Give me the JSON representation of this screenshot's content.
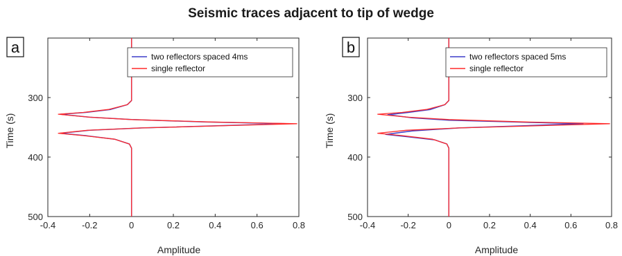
{
  "figure": {
    "title": "Seismic traces adjacent to tip of wedge"
  },
  "colors": {
    "blue": "#3b3bc8",
    "red": "#ff2a2a",
    "axis": "#262626"
  },
  "chart_data": [
    {
      "type": "line",
      "panel_label": "a",
      "xlabel": "Amplitude",
      "ylabel": "Time (s)",
      "xlim": [
        -0.4,
        0.8
      ],
      "ylim": [
        500,
        200
      ],
      "y_reversed": true,
      "xticks": [
        "-0.4",
        "-0.2",
        "0",
        "0.2",
        "0.4",
        "0.6",
        "0.8"
      ],
      "yticks": [
        "300",
        "400",
        "500"
      ],
      "legend_position": "top-right",
      "grid": false,
      "series": [
        {
          "name": "two reflectors spaced 4ms",
          "color": "#3b3bc8",
          "points": [
            [
              0,
              200
            ],
            [
              0,
              290
            ],
            [
              0,
              305
            ],
            [
              -0.02,
              312
            ],
            [
              -0.1,
              320
            ],
            [
              -0.22,
              325
            ],
            [
              -0.34,
              328
            ],
            [
              -0.2,
              333
            ],
            [
              0,
              337
            ],
            [
              0.35,
              341
            ],
            [
              0.74,
              344
            ],
            [
              0.45,
              347
            ],
            [
              0.05,
              351
            ],
            [
              -0.2,
              355
            ],
            [
              -0.34,
              360
            ],
            [
              -0.22,
              364
            ],
            [
              -0.08,
              370
            ],
            [
              -0.01,
              378
            ],
            [
              0,
              385
            ],
            [
              0,
              500
            ]
          ]
        },
        {
          "name": "single reflector",
          "color": "#ff2a2a",
          "points": [
            [
              0,
              200
            ],
            [
              0,
              290
            ],
            [
              0,
              305
            ],
            [
              -0.02,
              312
            ],
            [
              -0.11,
              320
            ],
            [
              -0.23,
              325
            ],
            [
              -0.35,
              328
            ],
            [
              -0.2,
              333
            ],
            [
              0,
              337
            ],
            [
              0.38,
              341
            ],
            [
              0.79,
              344
            ],
            [
              0.48,
              347
            ],
            [
              0.05,
              351
            ],
            [
              -0.21,
              355
            ],
            [
              -0.35,
              360
            ],
            [
              -0.23,
              364
            ],
            [
              -0.08,
              370
            ],
            [
              -0.01,
              378
            ],
            [
              0,
              385
            ],
            [
              0,
              500
            ]
          ]
        }
      ]
    },
    {
      "type": "line",
      "panel_label": "b",
      "xlabel": "Amplitude",
      "ylabel": "Time (s)",
      "xlim": [
        -0.4,
        0.8
      ],
      "ylim": [
        500,
        200
      ],
      "y_reversed": true,
      "xticks": [
        "-0.4",
        "-0.2",
        "0",
        "0.2",
        "0.4",
        "0.6",
        "0.8"
      ],
      "yticks": [
        "300",
        "400",
        "500"
      ],
      "legend_position": "top-right",
      "grid": false,
      "series": [
        {
          "name": "two reflectors spaced 5ms",
          "color": "#3b3bc8",
          "points": [
            [
              0,
              200
            ],
            [
              0,
              290
            ],
            [
              0,
              305
            ],
            [
              -0.02,
              312
            ],
            [
              -0.09,
              320
            ],
            [
              -0.2,
              325
            ],
            [
              -0.3,
              329
            ],
            [
              -0.18,
              334
            ],
            [
              0,
              338
            ],
            [
              0.32,
              341
            ],
            [
              0.66,
              344
            ],
            [
              0.4,
              347
            ],
            [
              0.05,
              351
            ],
            [
              -0.18,
              356
            ],
            [
              -0.31,
              362
            ],
            [
              -0.2,
              366
            ],
            [
              -0.07,
              371
            ],
            [
              -0.01,
              378
            ],
            [
              0,
              385
            ],
            [
              0,
              500
            ]
          ]
        },
        {
          "name": "single reflector",
          "color": "#ff2a2a",
          "points": [
            [
              0,
              200
            ],
            [
              0,
              290
            ],
            [
              0,
              305
            ],
            [
              -0.02,
              312
            ],
            [
              -0.11,
              320
            ],
            [
              -0.23,
              325
            ],
            [
              -0.35,
              328
            ],
            [
              -0.2,
              333
            ],
            [
              0,
              337
            ],
            [
              0.38,
              341
            ],
            [
              0.79,
              344
            ],
            [
              0.48,
              347
            ],
            [
              0.05,
              351
            ],
            [
              -0.21,
              355
            ],
            [
              -0.35,
              360
            ],
            [
              -0.23,
              364
            ],
            [
              -0.08,
              370
            ],
            [
              -0.01,
              378
            ],
            [
              0,
              385
            ],
            [
              0,
              500
            ]
          ]
        }
      ]
    }
  ]
}
